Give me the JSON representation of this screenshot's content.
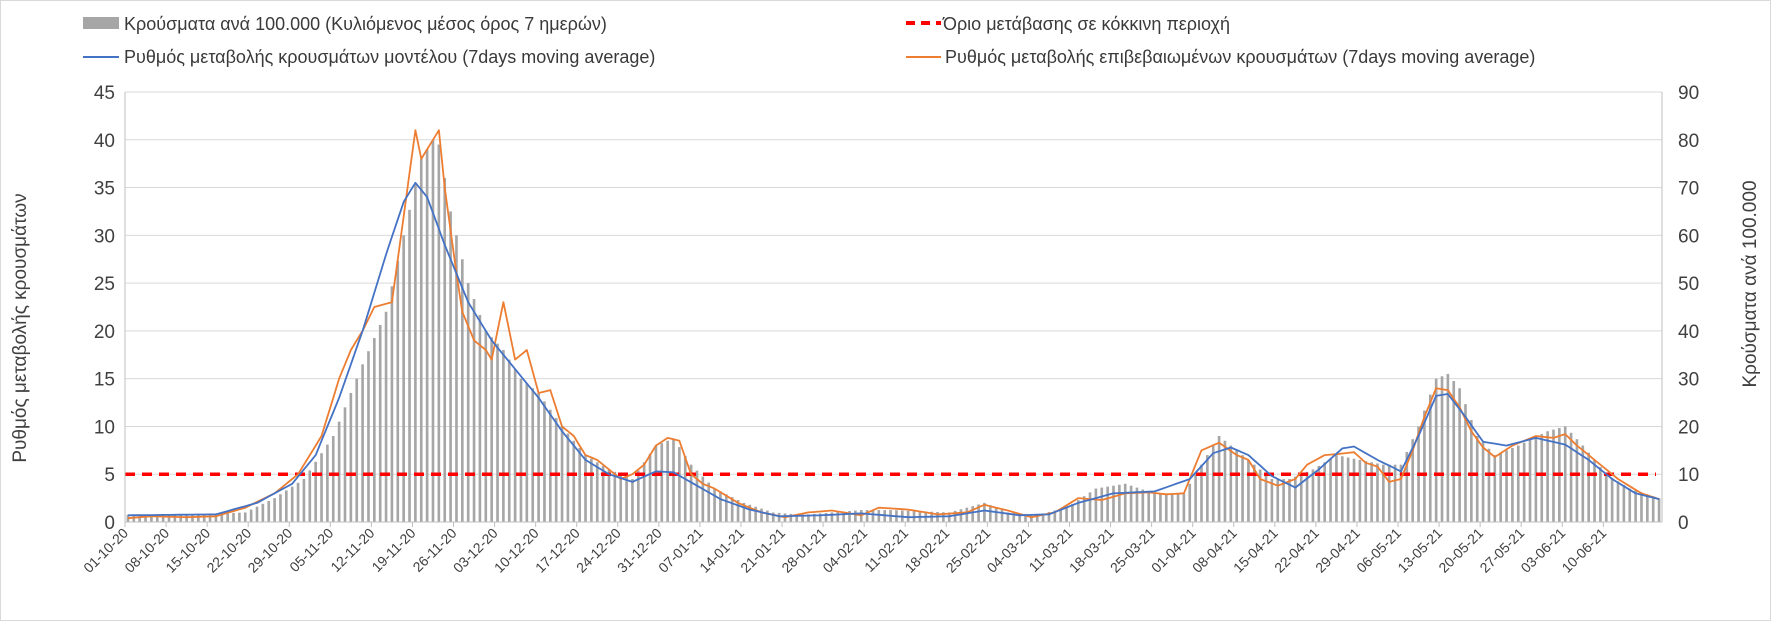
{
  "chart_data": {
    "type": "bar+line",
    "legend": {
      "bars": "Κρούσματα ανά 100.000 (Κυλιόμενος μέσος όρος 7 ημερών)",
      "threshold": "Όριο μετάβασης σε κόκκινη περιοχή",
      "model_line": "Ρυθμός μεταβολής κρουσμάτων μοντέλου (7days moving average)",
      "confirmed_line": "Ρυθμός μεταβολής επιβεβαιωμένων κρουσμάτων (7days moving average)"
    },
    "ylabel_left": "Ρυθμός μεταβολής κρουσμάτων",
    "ylabel_right": "Κρούσματα ανά 100.000",
    "ylim_left": [
      0,
      45
    ],
    "ylim_right": [
      0,
      90
    ],
    "yticks_left": [
      "0",
      "5",
      "10",
      "15",
      "20",
      "25",
      "30",
      "35",
      "40",
      "45"
    ],
    "yticks_right": [
      "0",
      "10",
      "20",
      "30",
      "40",
      "50",
      "60",
      "70",
      "80",
      "90"
    ],
    "threshold_left": 5,
    "days": 262,
    "x_ticks": [
      {
        "day": 0,
        "label": "01-10-20"
      },
      {
        "day": 7,
        "label": "08-10-20"
      },
      {
        "day": 14,
        "label": "15-10-20"
      },
      {
        "day": 21,
        "label": "22-10-20"
      },
      {
        "day": 28,
        "label": "29-10-20"
      },
      {
        "day": 35,
        "label": "05-11-20"
      },
      {
        "day": 42,
        "label": "12-11-20"
      },
      {
        "day": 49,
        "label": "19-11-20"
      },
      {
        "day": 56,
        "label": "26-11-20"
      },
      {
        "day": 63,
        "label": "03-12-20"
      },
      {
        "day": 70,
        "label": "10-12-20"
      },
      {
        "day": 77,
        "label": "17-12-20"
      },
      {
        "day": 84,
        "label": "24-12-20"
      },
      {
        "day": 91,
        "label": "31-12-20"
      },
      {
        "day": 98,
        "label": "07-01-21"
      },
      {
        "day": 105,
        "label": "14-01-21"
      },
      {
        "day": 112,
        "label": "21-01-21"
      },
      {
        "day": 119,
        "label": "28-01-21"
      },
      {
        "day": 126,
        "label": "04-02-21"
      },
      {
        "day": 133,
        "label": "11-02-21"
      },
      {
        "day": 140,
        "label": "18-02-21"
      },
      {
        "day": 147,
        "label": "25-02-21"
      },
      {
        "day": 154,
        "label": "04-03-21"
      },
      {
        "day": 161,
        "label": "11-03-21"
      },
      {
        "day": 168,
        "label": "18-03-21"
      },
      {
        "day": 175,
        "label": "25-03-21"
      },
      {
        "day": 182,
        "label": "01-04-21"
      },
      {
        "day": 189,
        "label": "08-04-21"
      },
      {
        "day": 196,
        "label": "15-04-21"
      },
      {
        "day": 203,
        "label": "22-04-21"
      },
      {
        "day": 210,
        "label": "29-04-21"
      },
      {
        "day": 217,
        "label": "06-05-21"
      },
      {
        "day": 224,
        "label": "13-05-21"
      },
      {
        "day": 231,
        "label": "20-05-21"
      },
      {
        "day": 238,
        "label": "27-05-21"
      },
      {
        "day": 245,
        "label": "03-06-21"
      },
      {
        "day": 252,
        "label": "10-06-21"
      }
    ],
    "bars_per100k_keypoints": [
      [
        0,
        1.5
      ],
      [
        10,
        1.5
      ],
      [
        20,
        2
      ],
      [
        25,
        5
      ],
      [
        30,
        9
      ],
      [
        35,
        18
      ],
      [
        40,
        33
      ],
      [
        44,
        44
      ],
      [
        47,
        60
      ],
      [
        50,
        76
      ],
      [
        52,
        80
      ],
      [
        53,
        79
      ],
      [
        55,
        65
      ],
      [
        58,
        50
      ],
      [
        61,
        40
      ],
      [
        64,
        36
      ],
      [
        67,
        30
      ],
      [
        70,
        27
      ],
      [
        74,
        20
      ],
      [
        78,
        14
      ],
      [
        82,
        11
      ],
      [
        86,
        9
      ],
      [
        90,
        16
      ],
      [
        93,
        17.5
      ],
      [
        96,
        12
      ],
      [
        100,
        7
      ],
      [
        105,
        4
      ],
      [
        110,
        2
      ],
      [
        115,
        1.5
      ],
      [
        125,
        2.5
      ],
      [
        130,
        2.5
      ],
      [
        140,
        2
      ],
      [
        146,
        4
      ],
      [
        150,
        2
      ],
      [
        155,
        1.5
      ],
      [
        160,
        3
      ],
      [
        165,
        7
      ],
      [
        170,
        8
      ],
      [
        175,
        6
      ],
      [
        180,
        6
      ],
      [
        183,
        12
      ],
      [
        186,
        18
      ],
      [
        190,
        14
      ],
      [
        195,
        9
      ],
      [
        198,
        9
      ],
      [
        202,
        11
      ],
      [
        206,
        14
      ],
      [
        210,
        13
      ],
      [
        214,
        12
      ],
      [
        217,
        12
      ],
      [
        220,
        20
      ],
      [
        223,
        30
      ],
      [
        225,
        31
      ],
      [
        227,
        28
      ],
      [
        230,
        18
      ],
      [
        233,
        14
      ],
      [
        237,
        16
      ],
      [
        242,
        19
      ],
      [
        245,
        20
      ],
      [
        248,
        16
      ],
      [
        252,
        10
      ],
      [
        256,
        7
      ],
      [
        261,
        5
      ]
    ],
    "model_rate_keypoints": [
      [
        0,
        0.7
      ],
      [
        15,
        0.8
      ],
      [
        22,
        2
      ],
      [
        28,
        4
      ],
      [
        32,
        7
      ],
      [
        36,
        13
      ],
      [
        40,
        20
      ],
      [
        44,
        28
      ],
      [
        47,
        33.5
      ],
      [
        49,
        35.5
      ],
      [
        51,
        34
      ],
      [
        54,
        29
      ],
      [
        58,
        23
      ],
      [
        62,
        19
      ],
      [
        66,
        16
      ],
      [
        70,
        13
      ],
      [
        74,
        9.5
      ],
      [
        78,
        6.5
      ],
      [
        82,
        5
      ],
      [
        86,
        4.2
      ],
      [
        90,
        5.3
      ],
      [
        93,
        5.2
      ],
      [
        97,
        3.8
      ],
      [
        101,
        2.4
      ],
      [
        106,
        1.3
      ],
      [
        111,
        0.6
      ],
      [
        118,
        0.7
      ],
      [
        125,
        0.9
      ],
      [
        133,
        0.5
      ],
      [
        140,
        0.6
      ],
      [
        146,
        1.2
      ],
      [
        152,
        0.7
      ],
      [
        157,
        0.8
      ],
      [
        162,
        2
      ],
      [
        168,
        3
      ],
      [
        175,
        3.2
      ],
      [
        181,
        4.5
      ],
      [
        185,
        7.2
      ],
      [
        188,
        7.8
      ],
      [
        191,
        7
      ],
      [
        195,
        4.8
      ],
      [
        199,
        3.6
      ],
      [
        203,
        5.5
      ],
      [
        207,
        7.7
      ],
      [
        209,
        7.9
      ],
      [
        213,
        6.5
      ],
      [
        217,
        5.3
      ],
      [
        220,
        9
      ],
      [
        223,
        13.2
      ],
      [
        225,
        13.4
      ],
      [
        228,
        11
      ],
      [
        231,
        8.4
      ],
      [
        235,
        8
      ],
      [
        240,
        8.8
      ],
      [
        245,
        8.1
      ],
      [
        249,
        6.5
      ],
      [
        253,
        4.5
      ],
      [
        257,
        3
      ],
      [
        261,
        2.4
      ]
    ],
    "confirmed_rate_keypoints": [
      [
        0,
        0.4
      ],
      [
        4,
        0.6
      ],
      [
        10,
        0.5
      ],
      [
        15,
        0.6
      ],
      [
        20,
        1.5
      ],
      [
        25,
        3
      ],
      [
        29,
        5
      ],
      [
        33,
        9
      ],
      [
        36,
        15
      ],
      [
        38,
        18
      ],
      [
        40,
        20
      ],
      [
        42,
        22.5
      ],
      [
        45,
        23
      ],
      [
        47,
        32
      ],
      [
        49,
        41
      ],
      [
        50,
        38
      ],
      [
        52,
        40
      ],
      [
        53,
        41
      ],
      [
        54,
        35
      ],
      [
        56,
        26
      ],
      [
        57,
        22
      ],
      [
        59,
        19
      ],
      [
        61,
        18
      ],
      [
        62,
        17
      ],
      [
        64,
        23
      ],
      [
        66,
        17
      ],
      [
        68,
        18
      ],
      [
        70,
        13.5
      ],
      [
        72,
        13.8
      ],
      [
        74,
        10
      ],
      [
        76,
        9
      ],
      [
        78,
        7
      ],
      [
        80,
        6.5
      ],
      [
        82,
        5.5
      ],
      [
        84,
        4.5
      ],
      [
        86,
        5
      ],
      [
        88,
        6
      ],
      [
        90,
        8
      ],
      [
        92,
        8.8
      ],
      [
        94,
        8.5
      ],
      [
        96,
        5
      ],
      [
        98,
        4
      ],
      [
        100,
        3.5
      ],
      [
        104,
        2
      ],
      [
        108,
        1
      ],
      [
        112,
        0.5
      ],
      [
        116,
        1
      ],
      [
        120,
        1.2
      ],
      [
        125,
        0.7
      ],
      [
        128,
        1.5
      ],
      [
        133,
        1.3
      ],
      [
        138,
        0.8
      ],
      [
        143,
        1
      ],
      [
        146,
        1.8
      ],
      [
        150,
        1.2
      ],
      [
        154,
        0.5
      ],
      [
        158,
        1
      ],
      [
        162,
        2.5
      ],
      [
        166,
        2.3
      ],
      [
        170,
        3
      ],
      [
        174,
        3.1
      ],
      [
        177,
        2.9
      ],
      [
        180,
        3
      ],
      [
        183,
        7.5
      ],
      [
        186,
        8.3
      ],
      [
        189,
        7
      ],
      [
        191,
        6.5
      ],
      [
        193,
        4.5
      ],
      [
        196,
        3.8
      ],
      [
        199,
        4.5
      ],
      [
        201,
        6
      ],
      [
        204,
        7
      ],
      [
        206,
        7.1
      ],
      [
        209,
        7.3
      ],
      [
        211,
        6.2
      ],
      [
        213,
        5.8
      ],
      [
        215,
        4.2
      ],
      [
        217,
        4.5
      ],
      [
        219,
        7.5
      ],
      [
        221,
        11
      ],
      [
        223,
        14
      ],
      [
        225,
        13.8
      ],
      [
        227,
        12
      ],
      [
        229,
        9.5
      ],
      [
        231,
        7.8
      ],
      [
        233,
        6.8
      ],
      [
        236,
        8
      ],
      [
        240,
        9
      ],
      [
        243,
        8.8
      ],
      [
        245,
        9.2
      ],
      [
        247,
        8
      ],
      [
        250,
        6.5
      ],
      [
        254,
        4.5
      ],
      [
        258,
        3
      ],
      [
        261,
        2.4
      ]
    ]
  },
  "colors": {
    "bars": "#a6a6a6",
    "model_line": "#4472c4",
    "confirmed_line": "#ed7d31",
    "threshold": "#ff0000",
    "grid": "#d9d9d9",
    "axis": "#bfbfbf"
  }
}
